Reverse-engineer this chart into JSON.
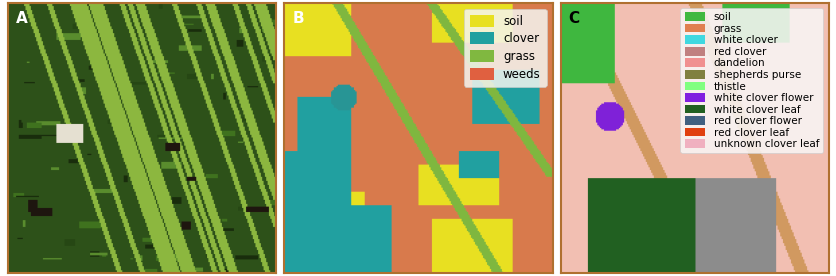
{
  "panel_labels": [
    "A",
    "B",
    "C"
  ],
  "panel_label_color_AB": "white",
  "panel_label_color_C": "black",
  "panel_B": {
    "legend_items": [
      {
        "label": "soil",
        "color": "#e8e020"
      },
      {
        "label": "clover",
        "color": "#20a0a0"
      },
      {
        "label": "grass",
        "color": "#80b840"
      },
      {
        "label": "weeds",
        "color": "#e06040"
      }
    ]
  },
  "panel_C": {
    "legend_items": [
      {
        "label": "soil",
        "color": "#40b840"
      },
      {
        "label": "grass",
        "color": "#e08050"
      },
      {
        "label": "white clover",
        "color": "#40d8e0"
      },
      {
        "label": "red clover",
        "color": "#c08080"
      },
      {
        "label": "dandelion",
        "color": "#f09090"
      },
      {
        "label": "shepherds purse",
        "color": "#808040"
      },
      {
        "label": "thistle",
        "color": "#80ff80"
      },
      {
        "label": "white clover flower",
        "color": "#8020e0"
      },
      {
        "label": "white clover leaf",
        "color": "#206020"
      },
      {
        "label": "red clover flower",
        "color": "#406080"
      },
      {
        "label": "red clover leaf",
        "color": "#e04010"
      },
      {
        "label": "unknown clover leaf",
        "color": "#f0b0c0"
      }
    ]
  },
  "figure_bg": "#ffffff",
  "border_color": "#b07030",
  "label_fontsize": 11,
  "legend_fontsize_B": 8.5,
  "legend_fontsize_C": 7.5
}
